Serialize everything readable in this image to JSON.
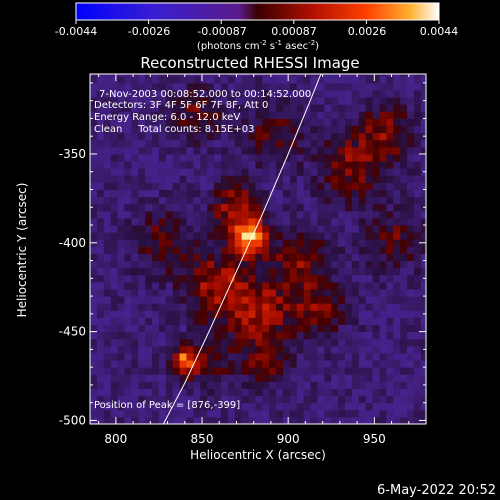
{
  "chart_data": {
    "type": "heatmap",
    "title": "Reconstructed RHESSI Image",
    "xlabel": "Heliocentric X (arcsec)",
    "ylabel": "Heliocentric Y (arcsec)",
    "xlim": [
      785,
      980
    ],
    "ylim": [
      -502,
      -305
    ],
    "xticks": [
      800,
      850,
      900,
      950
    ],
    "yticks": [
      -350,
      -400,
      -450,
      -500
    ],
    "colorbar": {
      "range": [
        -0.0044,
        0.0044
      ],
      "ticks": [
        "-0.0044",
        "-0.0026",
        "-0.00087",
        "0.00087",
        "0.0026",
        "0.0044"
      ],
      "units_prefix": "(photons cm",
      "units_exp1": "-2",
      "units_mid": " s",
      "units_exp2": "-1",
      "units_mid2": " asec",
      "units_exp3": "-2",
      "units_suffix": ")"
    },
    "annotations": [
      "7-Nov-2003 00:08:52.000 to 00:14:52.000",
      "Detectors: 3F 4F 5F 6F 7F 8F, Att 0",
      "Energy Range: 6.0 - 12.0 keV",
      "Clean     Total counts: 8.15E+03"
    ],
    "peak_label": "Position of Peak = [876,-399]",
    "peak": [
      876,
      -399
    ],
    "limb_curve": [
      [
        826,
        -505
      ],
      [
        840,
        -479
      ],
      [
        855,
        -448
      ],
      [
        870,
        -416
      ],
      [
        885,
        -384
      ],
      [
        900,
        -350
      ],
      [
        912,
        -322
      ],
      [
        919,
        -305
      ]
    ],
    "sources": [
      {
        "x": 876,
        "y": -399,
        "amp": 1.0,
        "sigma": 7
      },
      {
        "x": 868,
        "y": -382,
        "amp": 0.65,
        "sigma": 10
      },
      {
        "x": 837,
        "y": -468,
        "amp": 0.8,
        "sigma": 5
      },
      {
        "x": 855,
        "y": -425,
        "amp": 0.55,
        "sigma": 14
      },
      {
        "x": 880,
        "y": -440,
        "amp": 0.55,
        "sigma": 15
      },
      {
        "x": 905,
        "y": -410,
        "amp": 0.5,
        "sigma": 12
      },
      {
        "x": 915,
        "y": -440,
        "amp": 0.45,
        "sigma": 12
      },
      {
        "x": 935,
        "y": -360,
        "amp": 0.5,
        "sigma": 14
      },
      {
        "x": 955,
        "y": -340,
        "amp": 0.45,
        "sigma": 12
      },
      {
        "x": 960,
        "y": -400,
        "amp": 0.4,
        "sigma": 12
      },
      {
        "x": 845,
        "y": -330,
        "amp": 0.45,
        "sigma": 10
      },
      {
        "x": 890,
        "y": -340,
        "amp": 0.4,
        "sigma": 12
      },
      {
        "x": 825,
        "y": -400,
        "amp": 0.4,
        "sigma": 12
      },
      {
        "x": 850,
        "y": -470,
        "amp": 0.45,
        "sigma": 10
      },
      {
        "x": 885,
        "y": -470,
        "amp": 0.4,
        "sigma": 10
      }
    ]
  },
  "footer": {
    "timestamp": "6-May-2022 20:52"
  }
}
